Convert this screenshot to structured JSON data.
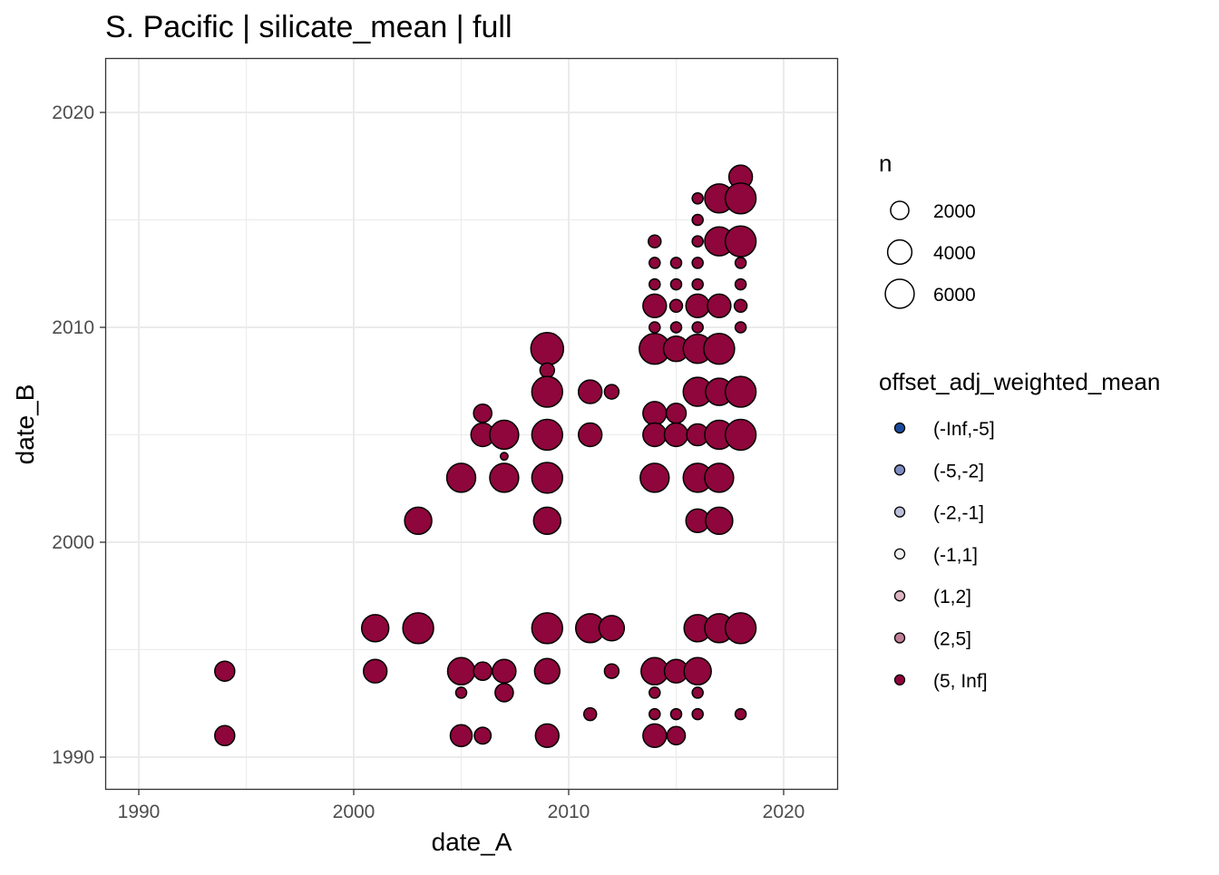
{
  "chart_data": {
    "type": "scatter",
    "title": "S. Pacific | silicate_mean | full",
    "xlabel": "date_A",
    "ylabel": "date_B",
    "xlim": [
      1988.5,
      2022.5
    ],
    "ylim": [
      1988.5,
      2022.5
    ],
    "xticks": [
      1990,
      2000,
      2010,
      2020
    ],
    "yticks": [
      1990,
      2000,
      2010,
      2020
    ],
    "grid": true,
    "size_legend": {
      "title": "n",
      "breaks": [
        2000,
        4000,
        6000
      ],
      "labels": [
        "2000",
        "4000",
        "6000"
      ]
    },
    "color_legend": {
      "title": "offset_adj_weighted_mean",
      "labels": [
        "(-Inf,-5]",
        "(-5,-2]",
        "(-2,-1]",
        "(-1,1]",
        "(1,2]",
        "(2,5]",
        "(5, Inf]"
      ],
      "colors": [
        "#1a4a9c",
        "#7f8cc2",
        "#bcbfd8",
        "#f0f0f0",
        "#dcb5c3",
        "#c17f97",
        "#8e063b"
      ]
    },
    "series": [
      {
        "name": "(5, Inf]",
        "color": "#8e063b",
        "points": [
          [
            1994,
            1994,
            2500
          ],
          [
            1994,
            1991,
            2500
          ],
          [
            2001,
            1996,
            5200
          ],
          [
            2001,
            1994,
            3700
          ],
          [
            2003,
            2001,
            5200
          ],
          [
            2003,
            1996,
            6900
          ],
          [
            2005,
            2003,
            6000
          ],
          [
            2005,
            1994,
            5200
          ],
          [
            2005,
            1993,
            500
          ],
          [
            2005,
            1991,
            3100
          ],
          [
            2006,
            2006,
            2000
          ],
          [
            2006,
            2005,
            3700
          ],
          [
            2006,
            1994,
            2000
          ],
          [
            2006,
            1991,
            1600
          ],
          [
            2007,
            2005,
            6000
          ],
          [
            2007,
            2004,
            150
          ],
          [
            2007,
            2003,
            6000
          ],
          [
            2007,
            1994,
            3700
          ],
          [
            2007,
            1993,
            2000
          ],
          [
            2009,
            2009,
            7900
          ],
          [
            2009,
            2008,
            1100
          ],
          [
            2009,
            2007,
            6900
          ],
          [
            2009,
            2005,
            6900
          ],
          [
            2009,
            2003,
            6900
          ],
          [
            2009,
            2001,
            5200
          ],
          [
            2009,
            1996,
            6900
          ],
          [
            2009,
            1994,
            4400
          ],
          [
            2009,
            1991,
            3700
          ],
          [
            2011,
            2007,
            3700
          ],
          [
            2011,
            2005,
            3700
          ],
          [
            2011,
            1996,
            6000
          ],
          [
            2011,
            1992,
            770
          ],
          [
            2012,
            2007,
            1100
          ],
          [
            2012,
            1996,
            4400
          ],
          [
            2012,
            1994,
            1100
          ],
          [
            2014,
            2014,
            770
          ],
          [
            2014,
            2013,
            500
          ],
          [
            2014,
            2012,
            500
          ],
          [
            2014,
            2011,
            3700
          ],
          [
            2014,
            2010,
            500
          ],
          [
            2014,
            2009,
            6900
          ],
          [
            2014,
            2006,
            3700
          ],
          [
            2014,
            2005,
            3700
          ],
          [
            2014,
            2003,
            6000
          ],
          [
            2014,
            1994,
            5200
          ],
          [
            2014,
            1993,
            500
          ],
          [
            2014,
            1992,
            500
          ],
          [
            2014,
            1991,
            3700
          ],
          [
            2015,
            2013,
            500
          ],
          [
            2015,
            2012,
            500
          ],
          [
            2015,
            2011,
            770
          ],
          [
            2015,
            2010,
            500
          ],
          [
            2015,
            2009,
            4400
          ],
          [
            2015,
            2006,
            2500
          ],
          [
            2015,
            2005,
            3700
          ],
          [
            2015,
            1994,
            3700
          ],
          [
            2015,
            1992,
            500
          ],
          [
            2015,
            1991,
            2000
          ],
          [
            2016,
            2016,
            500
          ],
          [
            2016,
            2015,
            500
          ],
          [
            2016,
            2014,
            500
          ],
          [
            2016,
            2013,
            500
          ],
          [
            2016,
            2012,
            500
          ],
          [
            2016,
            2011,
            3700
          ],
          [
            2016,
            2010,
            500
          ],
          [
            2016,
            2009,
            6000
          ],
          [
            2016,
            2007,
            6000
          ],
          [
            2016,
            2005,
            3100
          ],
          [
            2016,
            2003,
            6000
          ],
          [
            2016,
            2001,
            3700
          ],
          [
            2016,
            1996,
            5200
          ],
          [
            2016,
            1994,
            5200
          ],
          [
            2016,
            1993,
            500
          ],
          [
            2016,
            1992,
            500
          ],
          [
            2017,
            2016,
            6000
          ],
          [
            2017,
            2014,
            6000
          ],
          [
            2017,
            2011,
            3700
          ],
          [
            2017,
            2009,
            6900
          ],
          [
            2017,
            2007,
            5200
          ],
          [
            2017,
            2005,
            6000
          ],
          [
            2017,
            2003,
            6000
          ],
          [
            2017,
            2001,
            5200
          ],
          [
            2017,
            1996,
            6000
          ],
          [
            2018,
            2017,
            3700
          ],
          [
            2018,
            2016,
            6900
          ],
          [
            2018,
            2014,
            6900
          ],
          [
            2018,
            2013,
            500
          ],
          [
            2018,
            2012,
            500
          ],
          [
            2018,
            2011,
            770
          ],
          [
            2018,
            2010,
            500
          ],
          [
            2018,
            2007,
            6900
          ],
          [
            2018,
            2005,
            6900
          ],
          [
            2018,
            1996,
            6900
          ],
          [
            2018,
            1992,
            500
          ]
        ]
      }
    ]
  }
}
